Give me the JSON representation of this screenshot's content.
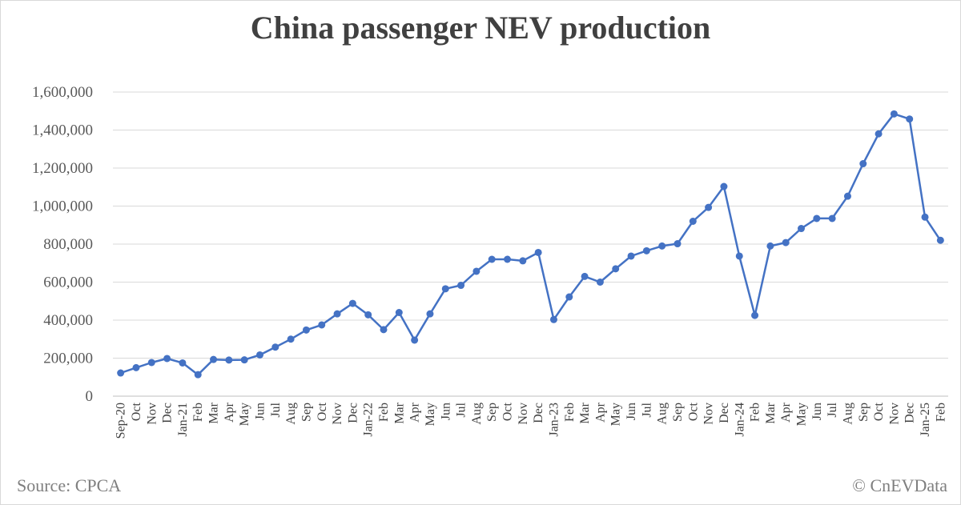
{
  "title": "China passenger NEV production",
  "source": "Source: CPCA",
  "copyright": "© CnEVData",
  "colors": {
    "line": "#4472c4",
    "grid": "#d9d9d9",
    "text": "#404040"
  },
  "chart_data": {
    "type": "line",
    "title": "China passenger NEV production",
    "xlabel": "",
    "ylabel": "",
    "ylim": [
      0,
      1600000
    ],
    "yticks": [
      "0",
      "200,000",
      "400,000",
      "600,000",
      "800,000",
      "1,000,000",
      "1,200,000",
      "1,400,000",
      "1,600,000"
    ],
    "grid": true,
    "legend": "none",
    "categories": [
      "Sep-20",
      "Oct",
      "Nov",
      "Dec",
      "Jan-21",
      "Feb",
      "Mar",
      "Apr",
      "May",
      "Jun",
      "Jul",
      "Aug",
      "Sep",
      "Oct",
      "Nov",
      "Dec",
      "Jan-22",
      "Feb",
      "Mar",
      "Apr",
      "May",
      "Jun",
      "Jul",
      "Aug",
      "Sep",
      "Oct",
      "Nov",
      "Dec",
      "Jan-23",
      "Feb",
      "Mar",
      "Apr",
      "May",
      "Jun",
      "Jul",
      "Aug",
      "Sep",
      "Oct",
      "Nov",
      "Dec",
      "Jan-24",
      "Feb",
      "Mar",
      "Apr",
      "May",
      "Jun",
      "Jul",
      "Aug",
      "Sep",
      "Oct",
      "Nov",
      "Dec",
      "Jan-25",
      "Feb"
    ],
    "series": [
      {
        "values": [
          122000,
          150000,
          177000,
          198000,
          175000,
          113000,
          193000,
          190000,
          191000,
          217000,
          258000,
          300000,
          348000,
          375000,
          433000,
          488000,
          428000,
          350000,
          440000,
          295000,
          433000,
          565000,
          583000,
          657000,
          720000,
          720000,
          712000,
          756000,
          403000,
          522000,
          630000,
          600000,
          670000,
          737000,
          765000,
          790000,
          802000,
          920000,
          993000,
          1103000,
          737000,
          425000,
          790000,
          808000,
          882000,
          935000,
          935000,
          1052000,
          1223000,
          1380000,
          1485000,
          1458000,
          942000,
          820000
        ]
      }
    ]
  }
}
